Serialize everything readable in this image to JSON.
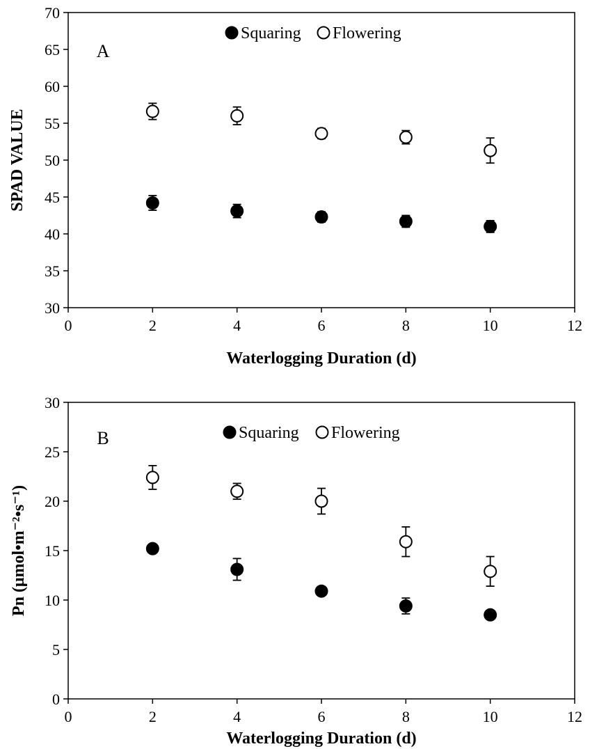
{
  "chart_data": [
    {
      "type": "scatter",
      "panel_label": "A",
      "xlabel": "Waterlogging Duration (d)",
      "ylabel": "SPAD VALUE",
      "xlim": [
        0,
        12
      ],
      "ylim": [
        30,
        70
      ],
      "xticks": [
        0,
        2,
        4,
        6,
        8,
        10,
        12
      ],
      "yticks": [
        30,
        35,
        40,
        45,
        50,
        55,
        60,
        65,
        70
      ],
      "legend": "top-center",
      "grid": false,
      "series": [
        {
          "name": "Squaring",
          "marker": "filled-circle",
          "color": "#000000",
          "x": [
            2,
            4,
            6,
            8,
            10
          ],
          "y": [
            44.2,
            43.1,
            42.3,
            41.7,
            41.0
          ],
          "err": [
            1.0,
            0.9,
            0.7,
            0.8,
            0.8
          ]
        },
        {
          "name": "Flowering",
          "marker": "open-circle",
          "color": "#000000",
          "x": [
            2,
            4,
            6,
            8,
            10
          ],
          "y": [
            56.6,
            56.0,
            53.6,
            53.1,
            51.3
          ],
          "err": [
            1.1,
            1.2,
            0.7,
            0.9,
            1.7
          ]
        }
      ]
    },
    {
      "type": "scatter",
      "panel_label": "B",
      "xlabel": "Waterlogging Duration (d)",
      "ylabel": "Pn (μmol•m⁻²•s⁻¹)",
      "xlim": [
        0,
        12
      ],
      "ylim": [
        0,
        30
      ],
      "xticks": [
        0,
        2,
        4,
        6,
        8,
        10,
        12
      ],
      "yticks": [
        0,
        5,
        10,
        15,
        20,
        25,
        30
      ],
      "legend": "top-center",
      "grid": false,
      "series": [
        {
          "name": "Squaring",
          "marker": "filled-circle",
          "color": "#000000",
          "x": [
            2,
            4,
            6,
            8,
            10
          ],
          "y": [
            15.2,
            13.1,
            10.9,
            9.4,
            8.5
          ],
          "err": [
            0.3,
            1.1,
            0.4,
            0.8,
            0.4
          ]
        },
        {
          "name": "Flowering",
          "marker": "open-circle",
          "color": "#000000",
          "x": [
            2,
            4,
            6,
            8,
            10
          ],
          "y": [
            22.4,
            21.0,
            20.0,
            15.9,
            12.9
          ],
          "err": [
            1.2,
            0.8,
            1.3,
            1.5,
            1.5
          ]
        }
      ]
    }
  ]
}
